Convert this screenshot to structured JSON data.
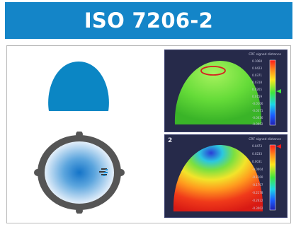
{
  "banner": {
    "title": "ISO 7206-2"
  },
  "panels": [
    {
      "id": "top",
      "number": "",
      "colorbar_title": "CRF signed distance",
      "colorbar_ticks": [
        "0.1060",
        "0.0423",
        "0.0371",
        "0.0318",
        "0.0265",
        "0.0159",
        "-0.0106",
        "-0.0371",
        "-0.0636",
        "-0.0902"
      ]
    },
    {
      "id": "bottom",
      "number": "2",
      "colorbar_title": "CRF signed distance",
      "colorbar_ticks": [
        "0.0473",
        "0.0233",
        "0.0031",
        "-0.0004",
        "-0.1100",
        "-0.1707",
        "-0.2178",
        "-0.2622",
        "-0.3002"
      ]
    }
  ],
  "colors": {
    "banner": "#1485c8",
    "cap": "#0b86c4",
    "ring": "#555555",
    "panel_bg": "#262a4a"
  },
  "icons": [
    "hemisphere-cap-icon",
    "ring-sphere-top-view-icon"
  ]
}
